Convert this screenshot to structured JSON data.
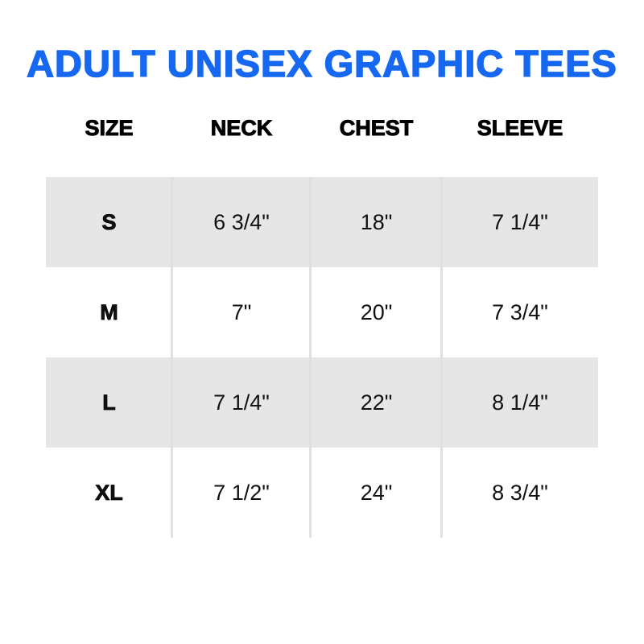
{
  "title": "ADULT UNISEX GRAPHIC TEES",
  "colors": {
    "title": "#1668f0",
    "shade": "#e6e6e6"
  },
  "headers": [
    "SIZE",
    "NECK",
    "CHEST",
    "SLEEVE"
  ],
  "rows": [
    {
      "size": "S",
      "neck": "6 3/4\"",
      "chest": "18\"",
      "sleeve": "7 1/4\""
    },
    {
      "size": "M",
      "neck": "7\"",
      "chest": "20\"",
      "sleeve": "7 3/4\""
    },
    {
      "size": "L",
      "neck": "7 1/4\"",
      "chest": "22\"",
      "sleeve": "8 1/4\""
    },
    {
      "size": "XL",
      "neck": "7 1/2\"",
      "chest": "24\"",
      "sleeve": "8 3/4\""
    }
  ]
}
